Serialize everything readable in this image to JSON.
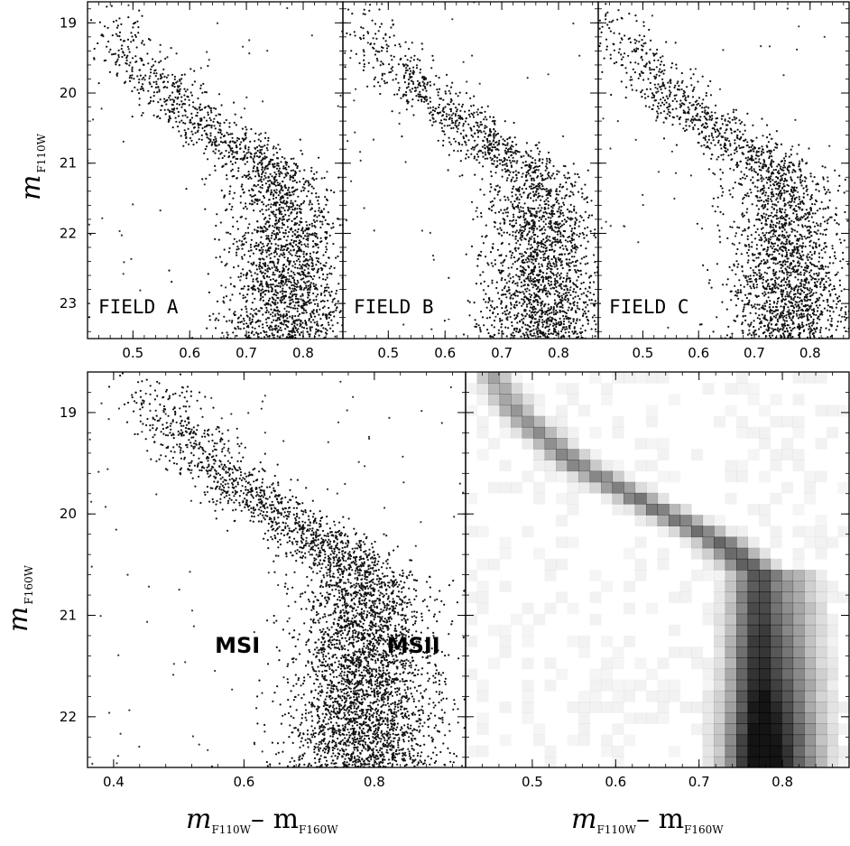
{
  "figure": {
    "top_ylabel": "m",
    "top_ylabel_sub": "F110W",
    "bottom_ylabel": "m",
    "bottom_ylabel_sub": "F160W",
    "xlabel_main": "m",
    "xlabel_sub1": "F110W",
    "xlabel_dash": "– m",
    "xlabel_sub2": "F160W"
  },
  "chart_data": [
    {
      "type": "scatter",
      "id": "field-a",
      "annotation": "FIELD A",
      "xlim": [
        0.42,
        0.87
      ],
      "ylim": [
        23.5,
        18.7
      ],
      "xticks": [
        0.5,
        0.6,
        0.7,
        0.8
      ],
      "xticklabels": [
        "0.5",
        "0.6",
        "0.7",
        "0.8"
      ],
      "yticks": [
        19,
        20,
        21,
        22,
        23
      ],
      "yticklabels": [
        "19",
        "20",
        "21",
        "22",
        "23"
      ],
      "ridge": {
        "y": [
          18.7,
          19.5,
          20.0,
          20.5,
          20.8,
          21.0,
          21.3,
          21.8,
          22.5,
          23.5
        ],
        "x": [
          0.45,
          0.5,
          0.56,
          0.64,
          0.69,
          0.73,
          0.76,
          0.77,
          0.77,
          0.77
        ]
      },
      "spread": 0.03
    },
    {
      "type": "scatter",
      "id": "field-b",
      "annotation": "FIELD B",
      "xlim": [
        0.42,
        0.87
      ],
      "ylim": [
        23.5,
        18.7
      ],
      "xticks": [
        0.5,
        0.6,
        0.7,
        0.8
      ],
      "xticklabels": [
        "0.5",
        "0.6",
        "0.7",
        "0.8"
      ],
      "yticks": [
        19,
        20,
        21,
        22,
        23
      ],
      "yticklabels": [],
      "ridge": {
        "y": [
          18.7,
          19.5,
          20.0,
          20.5,
          20.8,
          21.0,
          21.3,
          21.8,
          22.5,
          23.5
        ],
        "x": [
          0.45,
          0.5,
          0.56,
          0.64,
          0.69,
          0.73,
          0.76,
          0.77,
          0.77,
          0.77
        ]
      },
      "spread": 0.03
    },
    {
      "type": "scatter",
      "id": "field-c",
      "annotation": "FIELD C",
      "xlim": [
        0.42,
        0.87
      ],
      "ylim": [
        23.5,
        18.7
      ],
      "xticks": [
        0.5,
        0.6,
        0.7,
        0.8
      ],
      "xticklabels": [
        "0.5",
        "0.6",
        "0.7",
        "0.8"
      ],
      "yticks": [
        19,
        20,
        21,
        22,
        23
      ],
      "yticklabels": [],
      "ridge": {
        "y": [
          18.7,
          19.5,
          20.0,
          20.5,
          20.8,
          21.0,
          21.3,
          21.8,
          22.5,
          23.5
        ],
        "x": [
          0.44,
          0.49,
          0.55,
          0.63,
          0.68,
          0.72,
          0.75,
          0.76,
          0.76,
          0.76
        ]
      },
      "spread": 0.03
    },
    {
      "type": "scatter",
      "id": "combined-scatter",
      "xlim": [
        0.36,
        0.94
      ],
      "ylim": [
        22.5,
        18.6
      ],
      "xticks": [
        0.4,
        0.6,
        0.8
      ],
      "xticklabels": [
        "0.4",
        "0.6",
        "0.8"
      ],
      "yticks": [
        19,
        20,
        21,
        22
      ],
      "yticklabels": [
        "19",
        "20",
        "21",
        "22"
      ],
      "annotations": [
        {
          "text": "MSI",
          "x": 0.59,
          "y": 21.3
        },
        {
          "text": "MSII",
          "x": 0.86,
          "y": 21.3
        }
      ],
      "ridge": {
        "y": [
          18.6,
          19.0,
          19.5,
          20.0,
          20.3,
          20.6,
          21.0,
          21.5,
          22.0,
          22.5
        ],
        "x": [
          0.45,
          0.48,
          0.55,
          0.66,
          0.73,
          0.77,
          0.77,
          0.77,
          0.77,
          0.77
        ]
      },
      "spread": 0.03
    },
    {
      "type": "heatmap",
      "id": "hess-diagram",
      "xlim": [
        0.42,
        0.88
      ],
      "ylim": [
        22.5,
        18.6
      ],
      "xticks": [
        0.5,
        0.6,
        0.7,
        0.8
      ],
      "xticklabels": [
        "0.5",
        "0.6",
        "0.7",
        "0.8"
      ],
      "yticks": [
        19,
        20,
        21,
        22
      ],
      "yticklabels": [],
      "ridge": {
        "y": [
          18.6,
          19.0,
          19.5,
          20.0,
          20.3,
          20.6,
          21.0,
          21.5,
          22.0,
          22.5
        ],
        "x": [
          0.45,
          0.48,
          0.55,
          0.66,
          0.73,
          0.77,
          0.77,
          0.77,
          0.77,
          0.77
        ]
      }
    }
  ]
}
